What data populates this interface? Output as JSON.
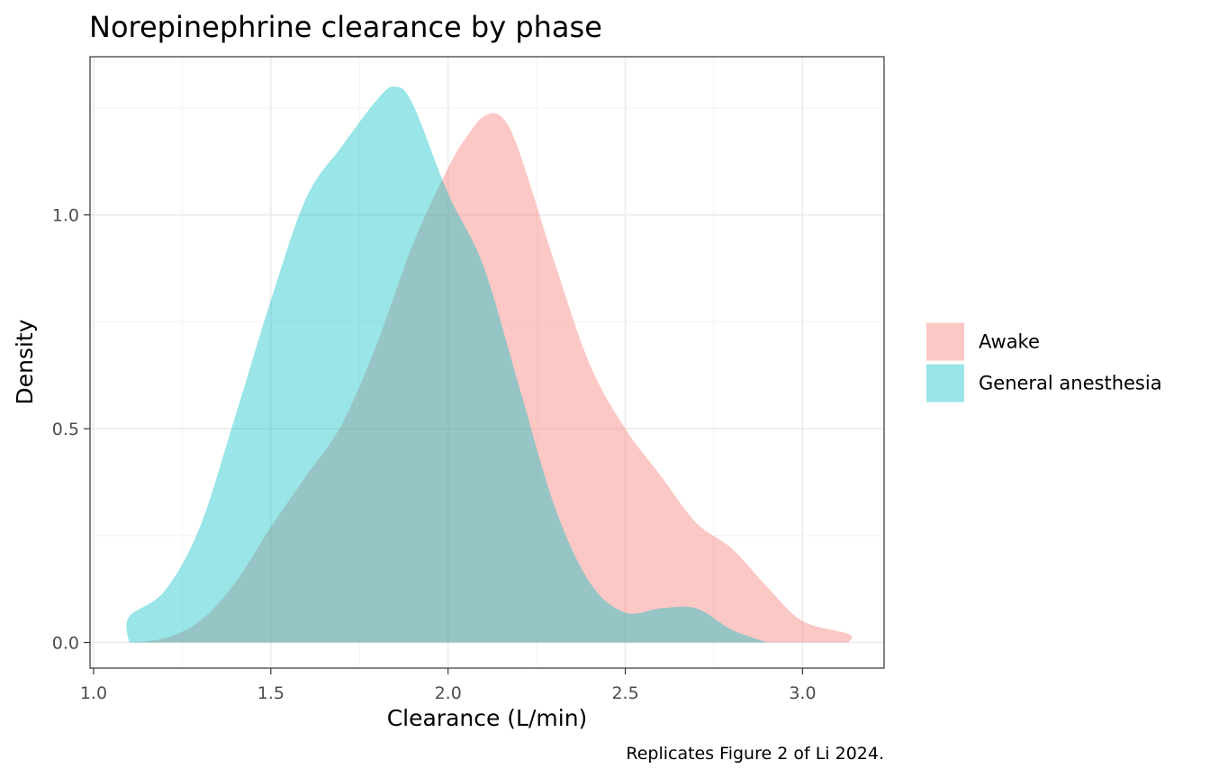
{
  "chart_data": {
    "type": "area",
    "title": "Norepinephrine clearance by phase",
    "xlabel": "Clearance (L/min)",
    "ylabel": "Density",
    "caption": "Replicates Figure 2 of Li 2024.",
    "xlim": [
      0.99,
      3.23
    ],
    "ylim": [
      -0.06,
      1.37
    ],
    "x_ticks": [
      "1.0",
      "1.5",
      "2.0",
      "2.5",
      "3.0"
    ],
    "y_ticks": [
      "0.0",
      "0.5",
      "1.0"
    ],
    "grid": true,
    "legend_position": "right",
    "series": [
      {
        "name": "Awake",
        "color": "#F8766D",
        "points": [
          [
            1.1,
            0.0
          ],
          [
            1.2,
            0.01
          ],
          [
            1.3,
            0.05
          ],
          [
            1.4,
            0.14
          ],
          [
            1.5,
            0.27
          ],
          [
            1.6,
            0.39
          ],
          [
            1.7,
            0.51
          ],
          [
            1.8,
            0.7
          ],
          [
            1.9,
            0.93
          ],
          [
            2.0,
            1.11
          ],
          [
            2.05,
            1.18
          ],
          [
            2.1,
            1.23
          ],
          [
            2.15,
            1.23
          ],
          [
            2.2,
            1.15
          ],
          [
            2.3,
            0.89
          ],
          [
            2.4,
            0.65
          ],
          [
            2.5,
            0.5
          ],
          [
            2.6,
            0.39
          ],
          [
            2.7,
            0.28
          ],
          [
            2.8,
            0.22
          ],
          [
            2.9,
            0.13
          ],
          [
            3.0,
            0.05
          ],
          [
            3.13,
            0.02
          ],
          [
            3.13,
            0.0
          ]
        ]
      },
      {
        "name": "General anesthesia",
        "color": "#00BFC4",
        "points": [
          [
            1.1,
            0.0
          ],
          [
            1.1,
            0.06
          ],
          [
            1.2,
            0.12
          ],
          [
            1.3,
            0.27
          ],
          [
            1.4,
            0.53
          ],
          [
            1.5,
            0.8
          ],
          [
            1.6,
            1.04
          ],
          [
            1.7,
            1.16
          ],
          [
            1.8,
            1.27
          ],
          [
            1.85,
            1.3
          ],
          [
            1.9,
            1.26
          ],
          [
            2.0,
            1.05
          ],
          [
            2.1,
            0.88
          ],
          [
            2.2,
            0.6
          ],
          [
            2.3,
            0.32
          ],
          [
            2.4,
            0.14
          ],
          [
            2.5,
            0.07
          ],
          [
            2.6,
            0.08
          ],
          [
            2.7,
            0.08
          ],
          [
            2.8,
            0.03
          ],
          [
            2.9,
            0.0
          ]
        ]
      }
    ]
  }
}
